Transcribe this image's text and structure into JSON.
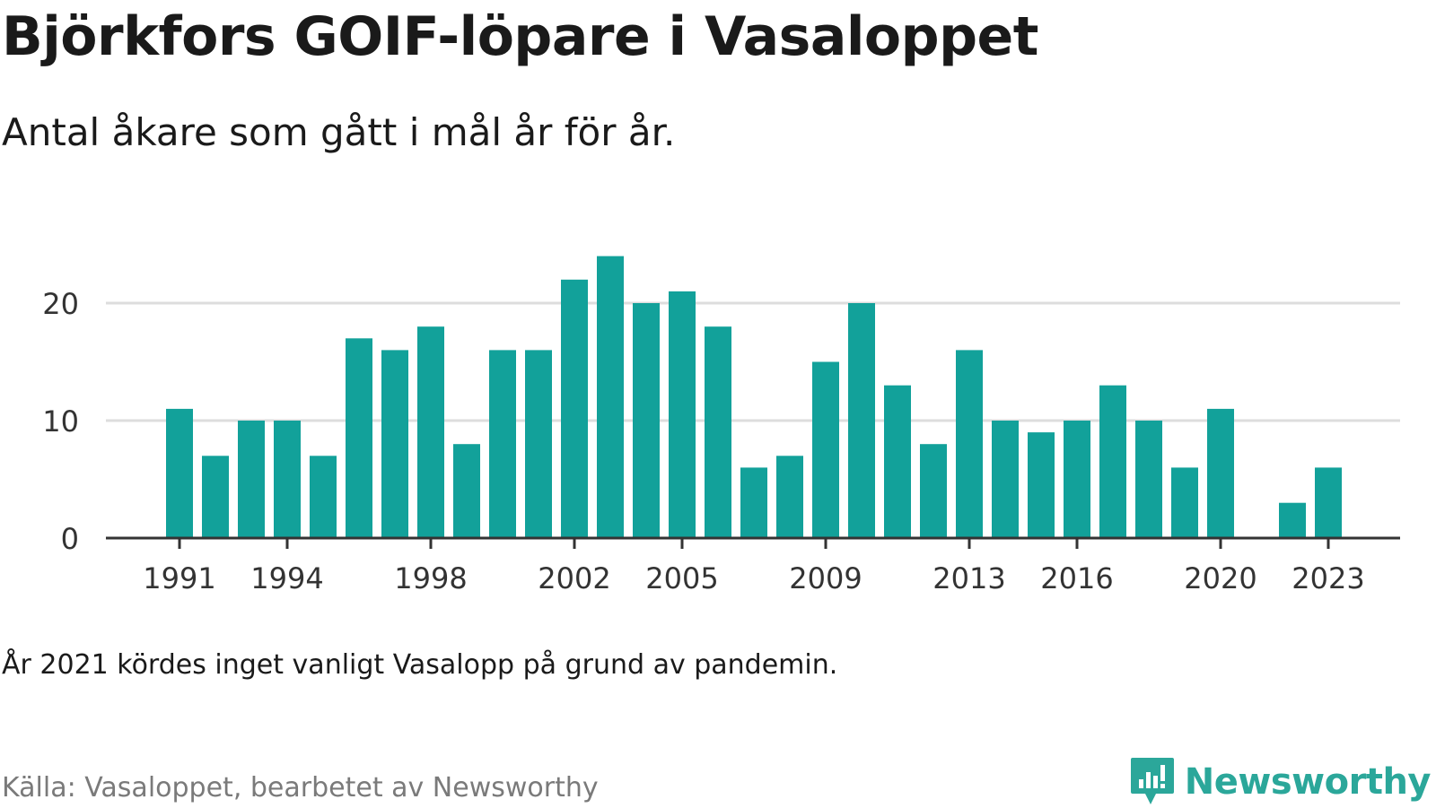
{
  "title": "Björkfors GOIF-löpare i Vasaloppet",
  "subtitle": "Antal åkare som gått i mål år för år.",
  "note": "År 2021 kördes inget vanligt Vasalopp på grund av pandemin.",
  "source": "Källa: Vasaloppet, bearbetet av Newsworthy",
  "brand": {
    "name": "Newsworthy",
    "icon": "newsworthy-logo-icon",
    "color": "#2ba79a"
  },
  "chart_data": {
    "type": "bar",
    "x": [
      1991,
      1992,
      1993,
      1994,
      1995,
      1996,
      1997,
      1998,
      1999,
      2000,
      2001,
      2002,
      2003,
      2004,
      2005,
      2006,
      2007,
      2008,
      2009,
      2010,
      2011,
      2012,
      2013,
      2014,
      2015,
      2016,
      2017,
      2018,
      2019,
      2020,
      2021,
      2022,
      2023
    ],
    "values": [
      11,
      7,
      10,
      10,
      7,
      17,
      16,
      18,
      8,
      16,
      16,
      22,
      24,
      20,
      21,
      18,
      6,
      7,
      15,
      20,
      13,
      8,
      16,
      10,
      9,
      10,
      13,
      10,
      6,
      11,
      null,
      3,
      6
    ],
    "x_tick_labels": [
      "1991",
      "1994",
      "1998",
      "2002",
      "2005",
      "2009",
      "2013",
      "2016",
      "2020",
      "2023"
    ],
    "y_ticks": [
      0,
      10,
      20
    ],
    "ylim": [
      0,
      25
    ],
    "grid": true,
    "bar_color": "#12a19a",
    "grid_color": "#dddddd",
    "axis_color": "#333333"
  }
}
